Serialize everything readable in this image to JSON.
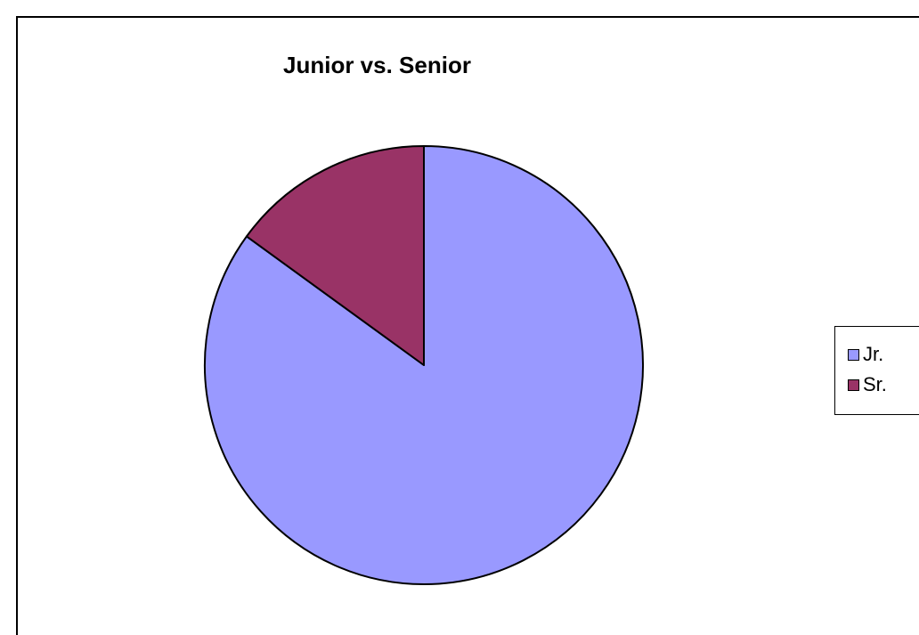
{
  "chart_data": {
    "type": "pie",
    "title": "Junior vs. Senior",
    "categories": [
      "Jr.",
      "Sr."
    ],
    "values": [
      85,
      15
    ],
    "colors": [
      "#9999ff",
      "#993366"
    ],
    "legend_position": "right",
    "start_angle_deg": 0,
    "direction": "clockwise"
  }
}
